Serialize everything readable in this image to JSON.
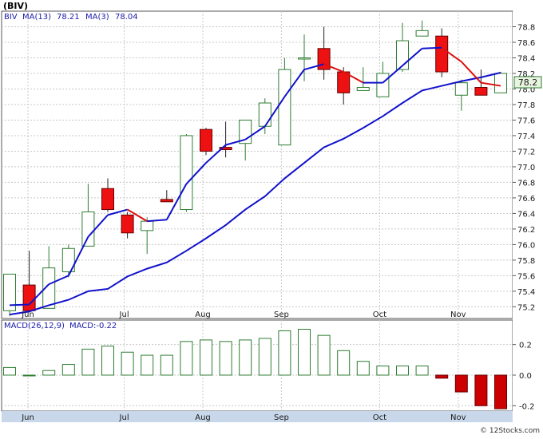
{
  "header": {
    "symbol_label": "(BIV)",
    "legend_symbol": "BIV",
    "ma13_label": "MA(13)",
    "ma13_value": "78.21",
    "ma3_label": "MA(3)",
    "ma3_value": "78.04",
    "last_price_tag": "78.2"
  },
  "macd": {
    "label": "MACD(26,12,9)",
    "value_label": "MACD:-0.22"
  },
  "footer": {
    "credit": "© 12Stocks.com"
  },
  "colors": {
    "up_fill": "#ffffff",
    "up_stroke": "#2e7d32",
    "down_fill": "#ee1111",
    "ma13": "#1111cc",
    "ma3_up": "#1111cc",
    "ma3_down": "#dd1111",
    "macd_pos_stroke": "#2e7d32",
    "macd_neg_fill": "#cc0000"
  },
  "chart_data": [
    {
      "type": "candlestick",
      "title": "(BIV)",
      "x_labels": [
        "Jun",
        "Jul",
        "Aug",
        "Sep",
        "Oct",
        "Nov"
      ],
      "y_ticks": [
        75.2,
        75.4,
        75.6,
        75.8,
        76.0,
        76.2,
        76.4,
        76.6,
        76.8,
        77.0,
        77.2,
        77.4,
        77.6,
        77.8,
        78.0,
        78.2,
        78.4,
        78.6,
        78.8
      ],
      "ylim": [
        75.05,
        79.0
      ],
      "grid": true,
      "weeks": [
        {
          "o": 75.15,
          "h": 75.62,
          "l": 75.08,
          "c": 75.62
        },
        {
          "o": 75.48,
          "h": 75.92,
          "l": 75.13,
          "c": 75.15
        },
        {
          "o": 75.18,
          "h": 75.98,
          "l": 75.18,
          "c": 75.7
        },
        {
          "o": 75.65,
          "h": 76.0,
          "l": 75.58,
          "c": 75.95
        },
        {
          "o": 75.98,
          "h": 76.78,
          "l": 75.98,
          "c": 76.42
        },
        {
          "o": 76.72,
          "h": 76.85,
          "l": 76.42,
          "c": 76.45
        },
        {
          "o": 76.38,
          "h": 76.42,
          "l": 76.08,
          "c": 76.15
        },
        {
          "o": 76.18,
          "h": 76.35,
          "l": 75.88,
          "c": 76.3
        },
        {
          "o": 76.58,
          "h": 76.7,
          "l": 76.55,
          "c": 76.55
        },
        {
          "o": 76.45,
          "h": 77.42,
          "l": 76.42,
          "c": 77.4
        },
        {
          "o": 77.48,
          "h": 77.5,
          "l": 77.15,
          "c": 77.2
        },
        {
          "o": 77.25,
          "h": 77.58,
          "l": 77.12,
          "c": 77.22
        },
        {
          "o": 77.3,
          "h": 77.6,
          "l": 77.08,
          "c": 77.6
        },
        {
          "o": 77.52,
          "h": 77.88,
          "l": 77.42,
          "c": 77.82
        },
        {
          "o": 77.28,
          "h": 78.4,
          "l": 77.28,
          "c": 78.25
        },
        {
          "o": 78.4,
          "h": 78.7,
          "l": 78.1,
          "c": 78.4
        },
        {
          "o": 78.52,
          "h": 78.8,
          "l": 78.12,
          "c": 78.25
        },
        {
          "o": 78.22,
          "h": 78.28,
          "l": 77.8,
          "c": 77.95
        },
        {
          "o": 77.98,
          "h": 78.28,
          "l": 77.98,
          "c": 78.02
        },
        {
          "o": 77.9,
          "h": 78.35,
          "l": 77.9,
          "c": 78.2
        },
        {
          "o": 78.25,
          "h": 78.85,
          "l": 78.22,
          "c": 78.62
        },
        {
          "o": 78.68,
          "h": 78.88,
          "l": 78.68,
          "c": 78.75
        },
        {
          "o": 78.68,
          "h": 78.78,
          "l": 78.15,
          "c": 78.22
        },
        {
          "o": 77.92,
          "h": 78.12,
          "l": 77.72,
          "c": 78.08
        },
        {
          "o": 78.02,
          "h": 78.25,
          "l": 77.92,
          "c": 77.92
        },
        {
          "o": 77.95,
          "h": 78.22,
          "l": 77.95,
          "c": 78.2
        }
      ],
      "ma13": [
        75.1,
        75.14,
        75.22,
        75.29,
        75.4,
        75.43,
        75.59,
        75.69,
        75.77,
        75.92,
        76.08,
        76.25,
        76.45,
        76.62,
        76.85,
        77.05,
        77.25,
        77.36,
        77.5,
        77.65,
        77.82,
        77.98,
        78.04,
        78.1,
        78.15,
        78.21
      ],
      "ma3": [
        75.22,
        75.23,
        75.49,
        75.6,
        76.1,
        76.38,
        76.45,
        76.3,
        76.32,
        76.78,
        77.05,
        77.28,
        77.35,
        77.52,
        77.9,
        78.25,
        78.32,
        78.22,
        78.08,
        78.08,
        78.3,
        78.52,
        78.53,
        78.35,
        78.08,
        78.04
      ]
    },
    {
      "type": "bar",
      "title": "MACD(26,12,9)",
      "y_ticks": [
        0.2,
        0.0,
        -0.2
      ],
      "ylim": [
        -0.235,
        0.36
      ],
      "values": [
        0.05,
        0.0,
        0.03,
        0.07,
        0.17,
        0.19,
        0.15,
        0.13,
        0.13,
        0.22,
        0.23,
        0.22,
        0.23,
        0.24,
        0.29,
        0.3,
        0.26,
        0.16,
        0.09,
        0.06,
        0.06,
        0.06,
        -0.02,
        -0.11,
        -0.2,
        -0.22
      ]
    }
  ]
}
